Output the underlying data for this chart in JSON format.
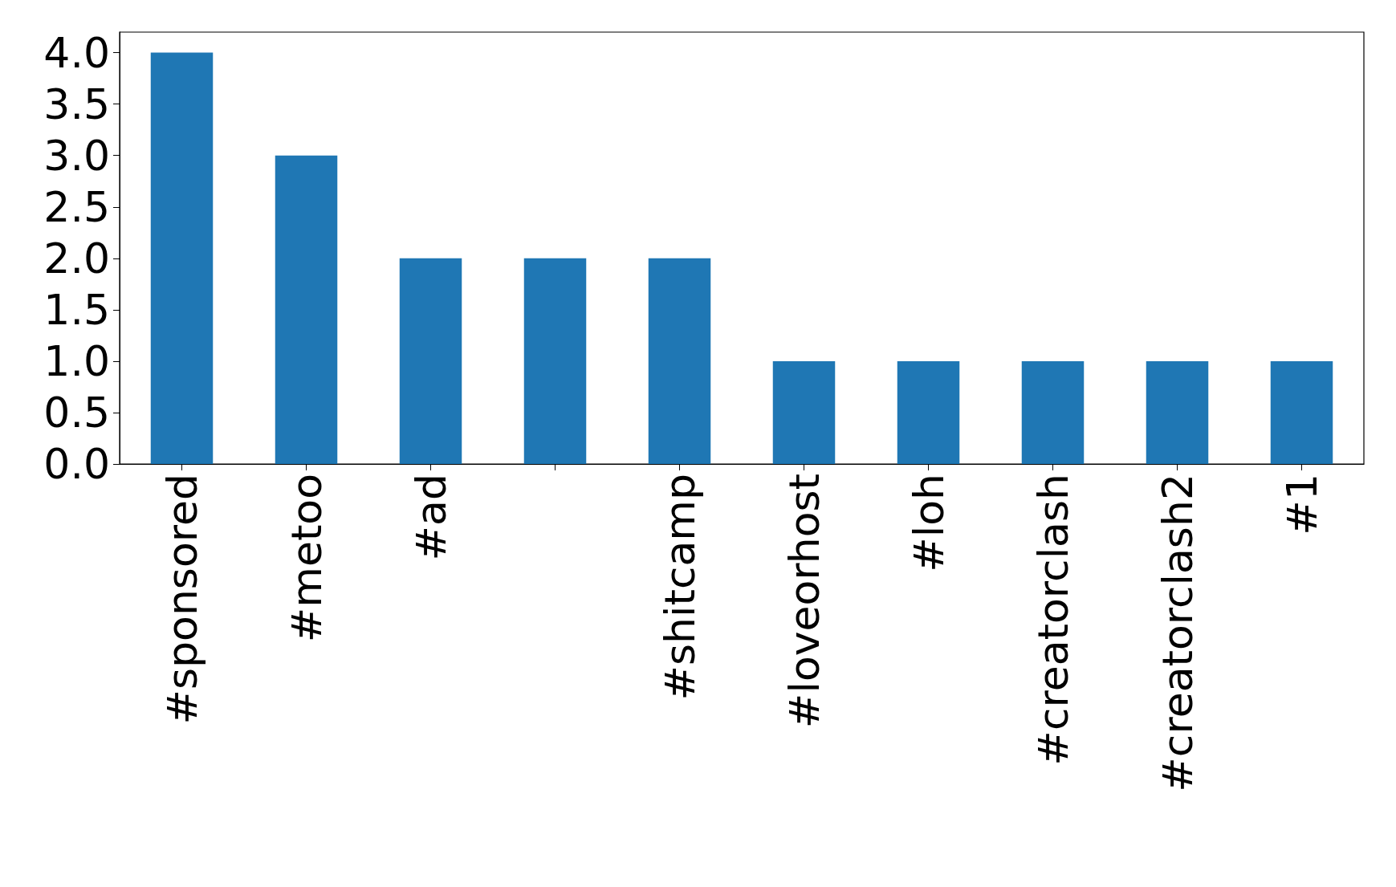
{
  "chart_data": {
    "type": "bar",
    "categories": [
      "#sponsored",
      "#metoo",
      "#ad",
      null,
      "#shitcamp",
      "#loveorhost",
      "#loh",
      "#creatorclash",
      "#creatorclash2",
      "#1"
    ],
    "values": [
      4,
      3,
      2,
      2,
      2,
      1,
      1,
      1,
      1,
      1
    ],
    "color": "#1f77b4",
    "ylim": [
      0,
      4.2
    ],
    "yticks": [
      {
        "value": 0,
        "label": "0.0"
      },
      {
        "value": 0.5,
        "label": "0.5"
      },
      {
        "value": 1,
        "label": "1.0"
      },
      {
        "value": 1.5,
        "label": "1.5"
      },
      {
        "value": 2,
        "label": "2.0"
      },
      {
        "value": 2.5,
        "label": "2.5"
      },
      {
        "value": 3,
        "label": "3.0"
      },
      {
        "value": 3.5,
        "label": "3.5"
      },
      {
        "value": 4,
        "label": "4.0"
      }
    ],
    "grid": false
  }
}
